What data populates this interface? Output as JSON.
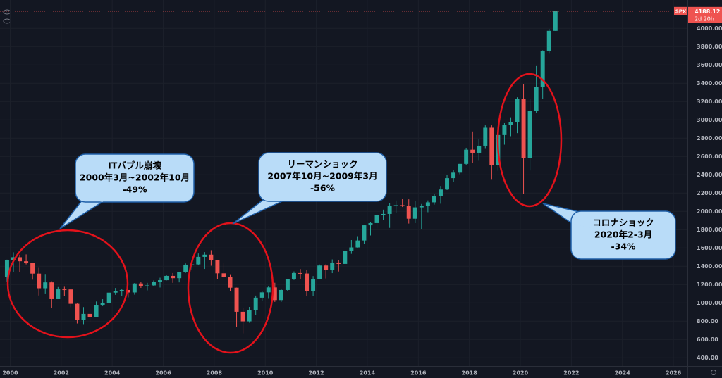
{
  "chart_data": {
    "type": "candlestick",
    "symbol": "SPX",
    "last_price": 4188.12,
    "countdown": "2d 20h",
    "up_color": "#26a69a",
    "down_color": "#ef5350",
    "grid": true,
    "xlim": [
      1999.6,
      2026.55
    ],
    "xticks": [
      2000,
      2002,
      2004,
      2006,
      2008,
      2010,
      2012,
      2014,
      2016,
      2018,
      2020,
      2022,
      2024,
      2026
    ],
    "ylim": [
      310,
      4310
    ],
    "yticks": [
      {
        "value": 400,
        "label": "400.00"
      },
      {
        "value": 600,
        "label": "600.00"
      },
      {
        "value": 800,
        "label": "800.00"
      },
      {
        "value": 1000,
        "label": "1000.00"
      },
      {
        "value": 1200,
        "label": "1200.00"
      },
      {
        "value": 1400,
        "label": "1400.00"
      },
      {
        "value": 1600,
        "label": "1600.00"
      },
      {
        "value": 1800,
        "label": "1800.00"
      },
      {
        "value": 2000,
        "label": "2000.00"
      },
      {
        "value": 2200,
        "label": "2200.00"
      },
      {
        "value": 2400,
        "label": "2400.00"
      },
      {
        "value": 2600,
        "label": "2600.00"
      },
      {
        "value": 2800,
        "label": "2800.00"
      },
      {
        "value": 3000,
        "label": "3000.00"
      },
      {
        "value": 3200,
        "label": "3200.00"
      },
      {
        "value": 3400,
        "label": "3400.00"
      },
      {
        "value": 3600,
        "label": "3600.00"
      },
      {
        "value": 3800,
        "label": "3800.00"
      },
      {
        "value": 4000,
        "label": "4000.00"
      }
    ],
    "x": [
      1999.75,
      2000,
      2000.25,
      2000.5,
      2000.75,
      2001,
      2001.25,
      2001.5,
      2001.75,
      2002,
      2002.25,
      2002.5,
      2002.75,
      2003,
      2003.25,
      2003.5,
      2003.75,
      2004,
      2004.25,
      2004.5,
      2004.75,
      2005,
      2005.25,
      2005.5,
      2005.75,
      2006,
      2006.25,
      2006.5,
      2006.75,
      2007,
      2007.25,
      2007.5,
      2007.75,
      2008,
      2008.25,
      2008.5,
      2008.75,
      2009,
      2009.25,
      2009.5,
      2009.75,
      2010,
      2010.25,
      2010.5,
      2010.75,
      2011,
      2011.25,
      2011.5,
      2011.75,
      2012,
      2012.25,
      2012.5,
      2012.75,
      2013,
      2013.25,
      2013.5,
      2013.75,
      2014,
      2014.25,
      2014.5,
      2014.75,
      2015,
      2015.25,
      2015.5,
      2015.75,
      2016,
      2016.25,
      2016.5,
      2016.75,
      2017,
      2017.25,
      2017.5,
      2017.75,
      2018,
      2018.25,
      2018.5,
      2018.75,
      2019,
      2019.25,
      2019.5,
      2019.75,
      2020,
      2020.25,
      2020.5,
      2020.75,
      2021,
      2021.25
    ],
    "open": [
      1282,
      1469,
      1499,
      1455,
      1436,
      1320,
      1160,
      1224,
      1041,
      1148,
      1147,
      990,
      815,
      880,
      848,
      975,
      996,
      1112,
      1126,
      1141,
      1114,
      1212,
      1181,
      1191,
      1229,
      1248,
      1295,
      1270,
      1336,
      1418,
      1421,
      1503,
      1527,
      1468,
      1323,
      1280,
      1166,
      903,
      798,
      919,
      1057,
      1115,
      1169,
      1031,
      1141,
      1258,
      1326,
      1321,
      1131,
      1258,
      1408,
      1362,
      1441,
      1426,
      1569,
      1606,
      1682,
      1848,
      1872,
      1960,
      1972,
      2059,
      2068,
      2063,
      1920,
      2044,
      2060,
      2099,
      2168,
      2239,
      2363,
      2423,
      2519,
      2674,
      2641,
      2718,
      2914,
      2507,
      2834,
      2942,
      2977,
      3231,
      2585,
      3100,
      3363,
      3756,
      3973
    ],
    "high": [
      1473,
      1553,
      1527,
      1530,
      1436,
      1383,
      1316,
      1236,
      1173,
      1176,
      1147,
      994,
      954,
      935,
      1015,
      1040,
      1112,
      1163,
      1150,
      1141,
      1217,
      1229,
      1219,
      1245,
      1275,
      1310,
      1326,
      1340,
      1431,
      1461,
      1540,
      1555,
      1576,
      1471,
      1440,
      1313,
      1167,
      944,
      956,
      1080,
      1130,
      1180,
      1220,
      1149,
      1262,
      1344,
      1370,
      1357,
      1293,
      1420,
      1422,
      1475,
      1470,
      1570,
      1687,
      1729,
      1850,
      1884,
      1968,
      2019,
      2094,
      2119,
      2135,
      2132,
      2116,
      2081,
      2120,
      2194,
      2278,
      2401,
      2454,
      2519,
      2695,
      2873,
      2791,
      2940,
      2940,
      2861,
      2964,
      3028,
      3247,
      3394,
      3233,
      3588,
      3760,
      3995,
      4191
    ],
    "low": [
      1233,
      1339,
      1339,
      1421,
      1254,
      1081,
      1103,
      945,
      1041,
      1074,
      953,
      775,
      768,
      789,
      848,
      965,
      996,
      1088,
      1076,
      1060,
      1090,
      1164,
      1137,
      1183,
      1168,
      1245,
      1219,
      1224,
      1327,
      1364,
      1416,
      1371,
      1406,
      1257,
      1272,
      1133,
      741,
      667,
      783,
      869,
      1020,
      1045,
      1011,
      1011,
      1131,
      1250,
      1258,
      1075,
      1074,
      1258,
      1267,
      1325,
      1343,
      1426,
      1536,
      1604,
      1646,
      1737,
      1814,
      1904,
      1820,
      1981,
      2048,
      1867,
      1872,
      1810,
      1991,
      2074,
      2084,
      2233,
      2323,
      2406,
      2510,
      2533,
      2553,
      2691,
      2346,
      2444,
      2729,
      2822,
      2855,
      2192,
      2447,
      3074,
      3233,
      3723,
      3973
    ],
    "close": [
      1469,
      1499,
      1455,
      1436,
      1320,
      1160,
      1224,
      1041,
      1148,
      1147,
      990,
      815,
      880,
      848,
      975,
      996,
      1112,
      1126,
      1141,
      1114,
      1212,
      1181,
      1191,
      1229,
      1248,
      1295,
      1270,
      1336,
      1418,
      1421,
      1503,
      1527,
      1468,
      1323,
      1280,
      1166,
      903,
      798,
      919,
      1057,
      1115,
      1169,
      1031,
      1141,
      1258,
      1326,
      1321,
      1131,
      1258,
      1408,
      1362,
      1441,
      1426,
      1569,
      1606,
      1682,
      1848,
      1872,
      1960,
      1972,
      2059,
      2068,
      2063,
      1920,
      2044,
      2060,
      2099,
      2168,
      2239,
      2363,
      2423,
      2519,
      2674,
      2641,
      2718,
      2914,
      2507,
      2834,
      2942,
      2977,
      3231,
      2585,
      3100,
      3363,
      3756,
      3973,
      4188.12
    ],
    "annotations": [
      {
        "lines": [
          "ITバブル崩壊",
          "2000年3月~2002年10月",
          "-49%"
        ]
      },
      {
        "lines": [
          "リーマンショック",
          "2007年10月~2009年3月",
          "-56%"
        ]
      },
      {
        "lines": [
          "コロナショック",
          "2020年2-3月",
          "-34%"
        ]
      }
    ]
  }
}
